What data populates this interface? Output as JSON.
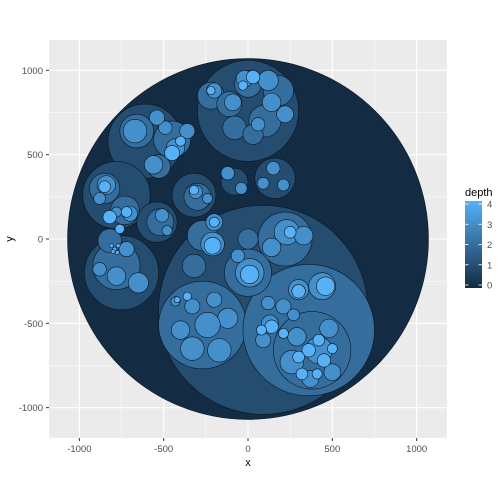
{
  "chart_data": {
    "type": "scatter",
    "subtype": "circle-packing",
    "title": "",
    "xlabel": "x",
    "ylabel": "y",
    "xlim": [
      -1180,
      1180
    ],
    "ylim": [
      -1180,
      1180
    ],
    "x_ticks": [
      -1000,
      -500,
      0,
      500,
      1000
    ],
    "y_ticks": [
      -1000,
      -500,
      0,
      500,
      1000
    ],
    "x_tick_labels": [
      "-1000",
      "-500",
      "0",
      "500",
      "1000"
    ],
    "y_tick_labels": [
      "-1000",
      "-500",
      "0",
      "500",
      "1000"
    ],
    "grid": true,
    "legend": {
      "title": "depth",
      "placement": "right",
      "min": 0,
      "max": 4,
      "ticks": [
        0,
        1,
        2,
        3,
        4
      ],
      "tick_labels": [
        "0",
        "1",
        "2",
        "3",
        "4"
      ],
      "low_color": "#132B43",
      "high_color": "#56B1F7"
    },
    "colors": {
      "panel_background": "#EBEBEB",
      "grid_major": "#FFFFFF",
      "circle_outline": "#0a1622"
    },
    "circles": [
      {
        "x": 0,
        "y": 0,
        "r": 1070,
        "depth": 0
      },
      {
        "x": 90,
        "y": -420,
        "r": 620,
        "depth": 1
      },
      {
        "x": 0,
        "y": 760,
        "r": 300,
        "depth": 1
      },
      {
        "x": -610,
        "y": 580,
        "r": 220,
        "depth": 1
      },
      {
        "x": -780,
        "y": 260,
        "r": 200,
        "depth": 1
      },
      {
        "x": -750,
        "y": -200,
        "r": 220,
        "depth": 1
      },
      {
        "x": -320,
        "y": 260,
        "r": 130,
        "depth": 1
      },
      {
        "x": -540,
        "y": 100,
        "r": 120,
        "depth": 1
      },
      {
        "x": 160,
        "y": 360,
        "r": 120,
        "depth": 1
      },
      {
        "x": -80,
        "y": 340,
        "r": 80,
        "depth": 1
      },
      {
        "x": -270,
        "y": 20,
        "r": 90,
        "depth": 2
      },
      {
        "x": -320,
        "y": -160,
        "r": 70,
        "depth": 2
      },
      {
        "x": -270,
        "y": -510,
        "r": 260,
        "depth": 2
      },
      {
        "x": 360,
        "y": -540,
        "r": 390,
        "depth": 2
      },
      {
        "x": 220,
        "y": 0,
        "r": 160,
        "depth": 2
      },
      {
        "x": 0,
        "y": -200,
        "r": 140,
        "depth": 2
      },
      {
        "x": 0,
        "y": 0,
        "r": 60,
        "depth": 2
      },
      {
        "x": 380,
        "y": -660,
        "r": 230,
        "depth": 2
      },
      {
        "x": 0,
        "y": 920,
        "r": 80,
        "depth": 2
      },
      {
        "x": -220,
        "y": 850,
        "r": 80,
        "depth": 2
      },
      {
        "x": 180,
        "y": 880,
        "r": 90,
        "depth": 2
      },
      {
        "x": -110,
        "y": 800,
        "r": 75,
        "depth": 2
      },
      {
        "x": 100,
        "y": 700,
        "r": 95,
        "depth": 2
      },
      {
        "x": -80,
        "y": 660,
        "r": 70,
        "depth": 2
      },
      {
        "x": 30,
        "y": 620,
        "r": 60,
        "depth": 2
      },
      {
        "x": -660,
        "y": 640,
        "r": 100,
        "depth": 2
      },
      {
        "x": -450,
        "y": 590,
        "r": 110,
        "depth": 2
      },
      {
        "x": -530,
        "y": 430,
        "r": 70,
        "depth": 2
      },
      {
        "x": -850,
        "y": 300,
        "r": 90,
        "depth": 2
      },
      {
        "x": -730,
        "y": 170,
        "r": 85,
        "depth": 2
      },
      {
        "x": -780,
        "y": -160,
        "r": 140,
        "depth": 2
      },
      {
        "x": -820,
        "y": -10,
        "r": 70,
        "depth": 2
      },
      {
        "x": -300,
        "y": 250,
        "r": 80,
        "depth": 2
      },
      {
        "x": -520,
        "y": 100,
        "r": 80,
        "depth": 2
      },
      {
        "x": -200,
        "y": -360,
        "r": 45,
        "depth": 3
      },
      {
        "x": -330,
        "y": -400,
        "r": 45,
        "depth": 3
      },
      {
        "x": -120,
        "y": -470,
        "r": 60,
        "depth": 3
      },
      {
        "x": -400,
        "y": -540,
        "r": 55,
        "depth": 3
      },
      {
        "x": -240,
        "y": -510,
        "r": 75,
        "depth": 3
      },
      {
        "x": -330,
        "y": -650,
        "r": 70,
        "depth": 3
      },
      {
        "x": -170,
        "y": -660,
        "r": 70,
        "depth": 3
      },
      {
        "x": -430,
        "y": -370,
        "r": 28,
        "depth": 3
      },
      {
        "x": 260,
        "y": -730,
        "r": 70,
        "depth": 3
      },
      {
        "x": 290,
        "y": -580,
        "r": 55,
        "depth": 3
      },
      {
        "x": 420,
        "y": -660,
        "r": 80,
        "depth": 3
      },
      {
        "x": 480,
        "y": -530,
        "r": 55,
        "depth": 3
      },
      {
        "x": 500,
        "y": -790,
        "r": 50,
        "depth": 3
      },
      {
        "x": 370,
        "y": -830,
        "r": 50,
        "depth": 3
      },
      {
        "x": 130,
        "y": -500,
        "r": 50,
        "depth": 3
      },
      {
        "x": 90,
        "y": -600,
        "r": 45,
        "depth": 3
      },
      {
        "x": 440,
        "y": -280,
        "r": 80,
        "depth": 3
      },
      {
        "x": 300,
        "y": -300,
        "r": 60,
        "depth": 3
      },
      {
        "x": 210,
        "y": -400,
        "r": 45,
        "depth": 3
      },
      {
        "x": 270,
        "y": -450,
        "r": 35,
        "depth": 3
      },
      {
        "x": 120,
        "y": -380,
        "r": 40,
        "depth": 3
      },
      {
        "x": 10,
        "y": -200,
        "r": 85,
        "depth": 3
      },
      {
        "x": -60,
        "y": -100,
        "r": 40,
        "depth": 3
      },
      {
        "x": 230,
        "y": 40,
        "r": 75,
        "depth": 3
      },
      {
        "x": 330,
        "y": 20,
        "r": 55,
        "depth": 3
      },
      {
        "x": 140,
        "y": -50,
        "r": 55,
        "depth": 3
      },
      {
        "x": -200,
        "y": 100,
        "r": 50,
        "depth": 3
      },
      {
        "x": -210,
        "y": -30,
        "r": 70,
        "depth": 3
      },
      {
        "x": 120,
        "y": 940,
        "r": 60,
        "depth": 3
      },
      {
        "x": 220,
        "y": 740,
        "r": 50,
        "depth": 3
      },
      {
        "x": -200,
        "y": 880,
        "r": 45,
        "depth": 3
      },
      {
        "x": -90,
        "y": 810,
        "r": 50,
        "depth": 3
      },
      {
        "x": 140,
        "y": 810,
        "r": 55,
        "depth": 3
      },
      {
        "x": -20,
        "y": 950,
        "r": 50,
        "depth": 3
      },
      {
        "x": 60,
        "y": 680,
        "r": 40,
        "depth": 3
      },
      {
        "x": -430,
        "y": 540,
        "r": 55,
        "depth": 3
      },
      {
        "x": -360,
        "y": 640,
        "r": 45,
        "depth": 3
      },
      {
        "x": -490,
        "y": 660,
        "r": 40,
        "depth": 3
      },
      {
        "x": -670,
        "y": 640,
        "r": 70,
        "depth": 3
      },
      {
        "x": -540,
        "y": 720,
        "r": 45,
        "depth": 3
      },
      {
        "x": -560,
        "y": 440,
        "r": 55,
        "depth": 3
      },
      {
        "x": -840,
        "y": 320,
        "r": 55,
        "depth": 3
      },
      {
        "x": -880,
        "y": 240,
        "r": 35,
        "depth": 3
      },
      {
        "x": -700,
        "y": 150,
        "r": 45,
        "depth": 3
      },
      {
        "x": -780,
        "y": 160,
        "r": 30,
        "depth": 3
      },
      {
        "x": -780,
        "y": -220,
        "r": 55,
        "depth": 3
      },
      {
        "x": -650,
        "y": -260,
        "r": 60,
        "depth": 3
      },
      {
        "x": -880,
        "y": -180,
        "r": 40,
        "depth": 3
      },
      {
        "x": -720,
        "y": -60,
        "r": 45,
        "depth": 3
      },
      {
        "x": -310,
        "y": 280,
        "r": 40,
        "depth": 3
      },
      {
        "x": -240,
        "y": 240,
        "r": 30,
        "depth": 3
      },
      {
        "x": -510,
        "y": 140,
        "r": 40,
        "depth": 3
      },
      {
        "x": -480,
        "y": 50,
        "r": 30,
        "depth": 3
      },
      {
        "x": -120,
        "y": 390,
        "r": 40,
        "depth": 3
      },
      {
        "x": -40,
        "y": 300,
        "r": 35,
        "depth": 3
      },
      {
        "x": 150,
        "y": 420,
        "r": 40,
        "depth": 3
      },
      {
        "x": 210,
        "y": 320,
        "r": 35,
        "depth": 3
      },
      {
        "x": 90,
        "y": 330,
        "r": 35,
        "depth": 3
      },
      {
        "x": 360,
        "y": -660,
        "r": 40,
        "depth": 4
      },
      {
        "x": 300,
        "y": -700,
        "r": 35,
        "depth": 4
      },
      {
        "x": 450,
        "y": -720,
        "r": 40,
        "depth": 4
      },
      {
        "x": 420,
        "y": -600,
        "r": 35,
        "depth": 4
      },
      {
        "x": 500,
        "y": -650,
        "r": 30,
        "depth": 4
      },
      {
        "x": 320,
        "y": -800,
        "r": 35,
        "depth": 4
      },
      {
        "x": 410,
        "y": -800,
        "r": 30,
        "depth": 4
      },
      {
        "x": 460,
        "y": -280,
        "r": 55,
        "depth": 4
      },
      {
        "x": 300,
        "y": -310,
        "r": 40,
        "depth": 4
      },
      {
        "x": 140,
        "y": -520,
        "r": 40,
        "depth": 4
      },
      {
        "x": 80,
        "y": -540,
        "r": 30,
        "depth": 4
      },
      {
        "x": 210,
        "y": -560,
        "r": 30,
        "depth": 4
      },
      {
        "x": -360,
        "y": -340,
        "r": 25,
        "depth": 4
      },
      {
        "x": -420,
        "y": -360,
        "r": 18,
        "depth": 4
      },
      {
        "x": 10,
        "y": -210,
        "r": 55,
        "depth": 4
      },
      {
        "x": -210,
        "y": -40,
        "r": 50,
        "depth": 4
      },
      {
        "x": -200,
        "y": 100,
        "r": 30,
        "depth": 4
      },
      {
        "x": 250,
        "y": 40,
        "r": 35,
        "depth": 4
      },
      {
        "x": -450,
        "y": 510,
        "r": 45,
        "depth": 4
      },
      {
        "x": -400,
        "y": 580,
        "r": 30,
        "depth": 4
      },
      {
        "x": 30,
        "y": 960,
        "r": 40,
        "depth": 4
      },
      {
        "x": -30,
        "y": 910,
        "r": 28,
        "depth": 4
      },
      {
        "x": -220,
        "y": 880,
        "r": 25,
        "depth": 4
      },
      {
        "x": -820,
        "y": 130,
        "r": 40,
        "depth": 4
      },
      {
        "x": -720,
        "y": 160,
        "r": 32,
        "depth": 4
      },
      {
        "x": -850,
        "y": 310,
        "r": 35,
        "depth": 4
      },
      {
        "x": -760,
        "y": 60,
        "r": 28,
        "depth": 4
      },
      {
        "x": -320,
        "y": 290,
        "r": 28,
        "depth": 4
      },
      {
        "x": -790,
        "y": -60,
        "r": 12,
        "depth": 4
      },
      {
        "x": -810,
        "y": -40,
        "r": 12,
        "depth": 4
      },
      {
        "x": -770,
        "y": -40,
        "r": 12,
        "depth": 4
      },
      {
        "x": -800,
        "y": -75,
        "r": 12,
        "depth": 4
      },
      {
        "x": -775,
        "y": -80,
        "r": 12,
        "depth": 4
      }
    ]
  }
}
